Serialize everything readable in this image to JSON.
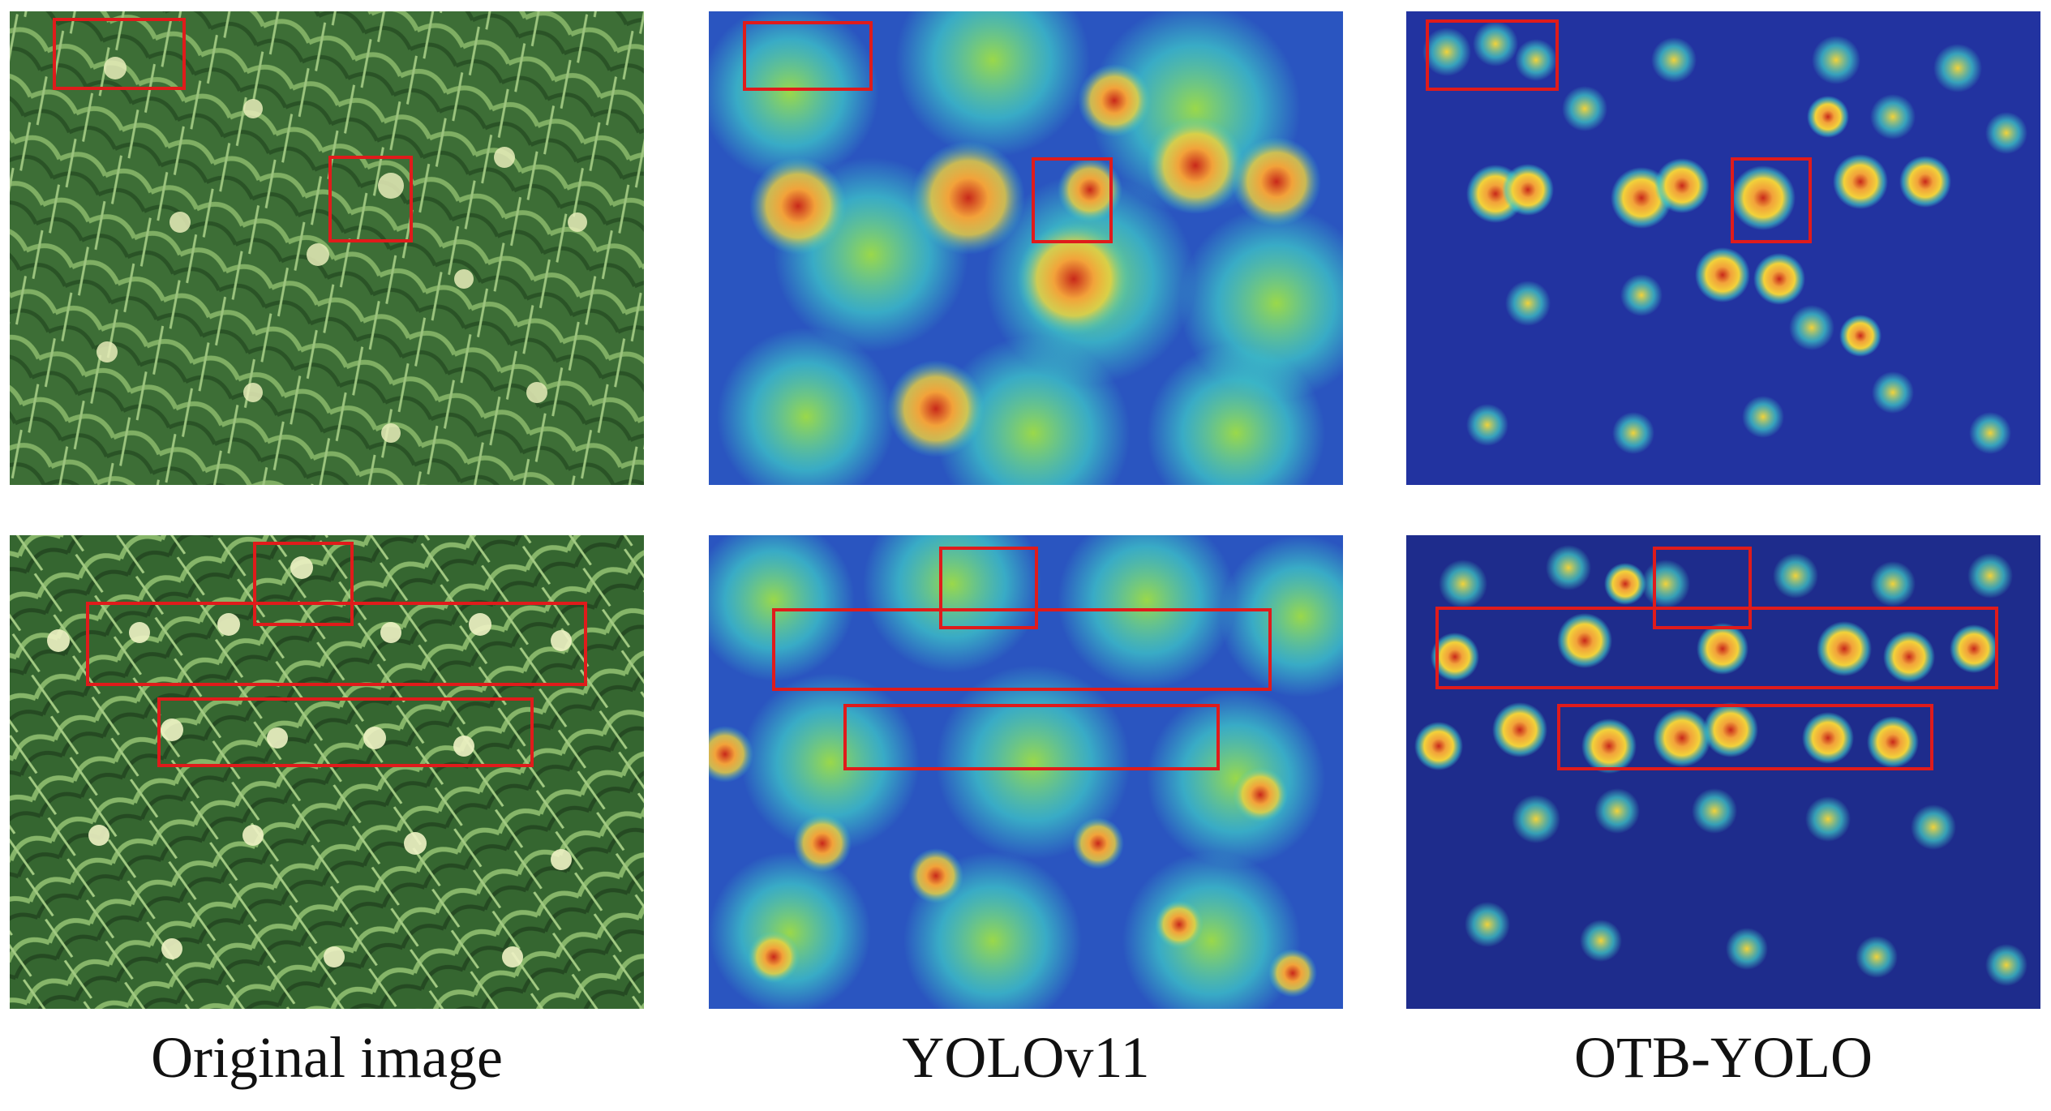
{
  "captions": {
    "original": "Original image",
    "yolov11": "YOLOv11",
    "otb_yolo": "OTB-YOLO"
  },
  "colors": {
    "box": "#e01b1b",
    "plant_dark": "#2f5e2a",
    "plant_light": "#8fb874",
    "tassel": "#e6ecb8",
    "heat_cold": "#1f2fa8",
    "heat_mid": "#3fd0c8",
    "heat_warm": "#f2d23a",
    "heat_hot": "#c8291a"
  },
  "panels": [
    {
      "row": 1,
      "column": "Original image",
      "kind": "photo",
      "boxes": 2
    },
    {
      "row": 1,
      "column": "YOLOv11",
      "kind": "heatmap",
      "boxes": 2
    },
    {
      "row": 1,
      "column": "OTB-YOLO",
      "kind": "heatmap",
      "boxes": 2
    },
    {
      "row": 2,
      "column": "Original image",
      "kind": "photo",
      "boxes": 3
    },
    {
      "row": 2,
      "column": "YOLOv11",
      "kind": "heatmap",
      "boxes": 3
    },
    {
      "row": 2,
      "column": "OTB-YOLO",
      "kind": "heatmap",
      "boxes": 3
    }
  ]
}
